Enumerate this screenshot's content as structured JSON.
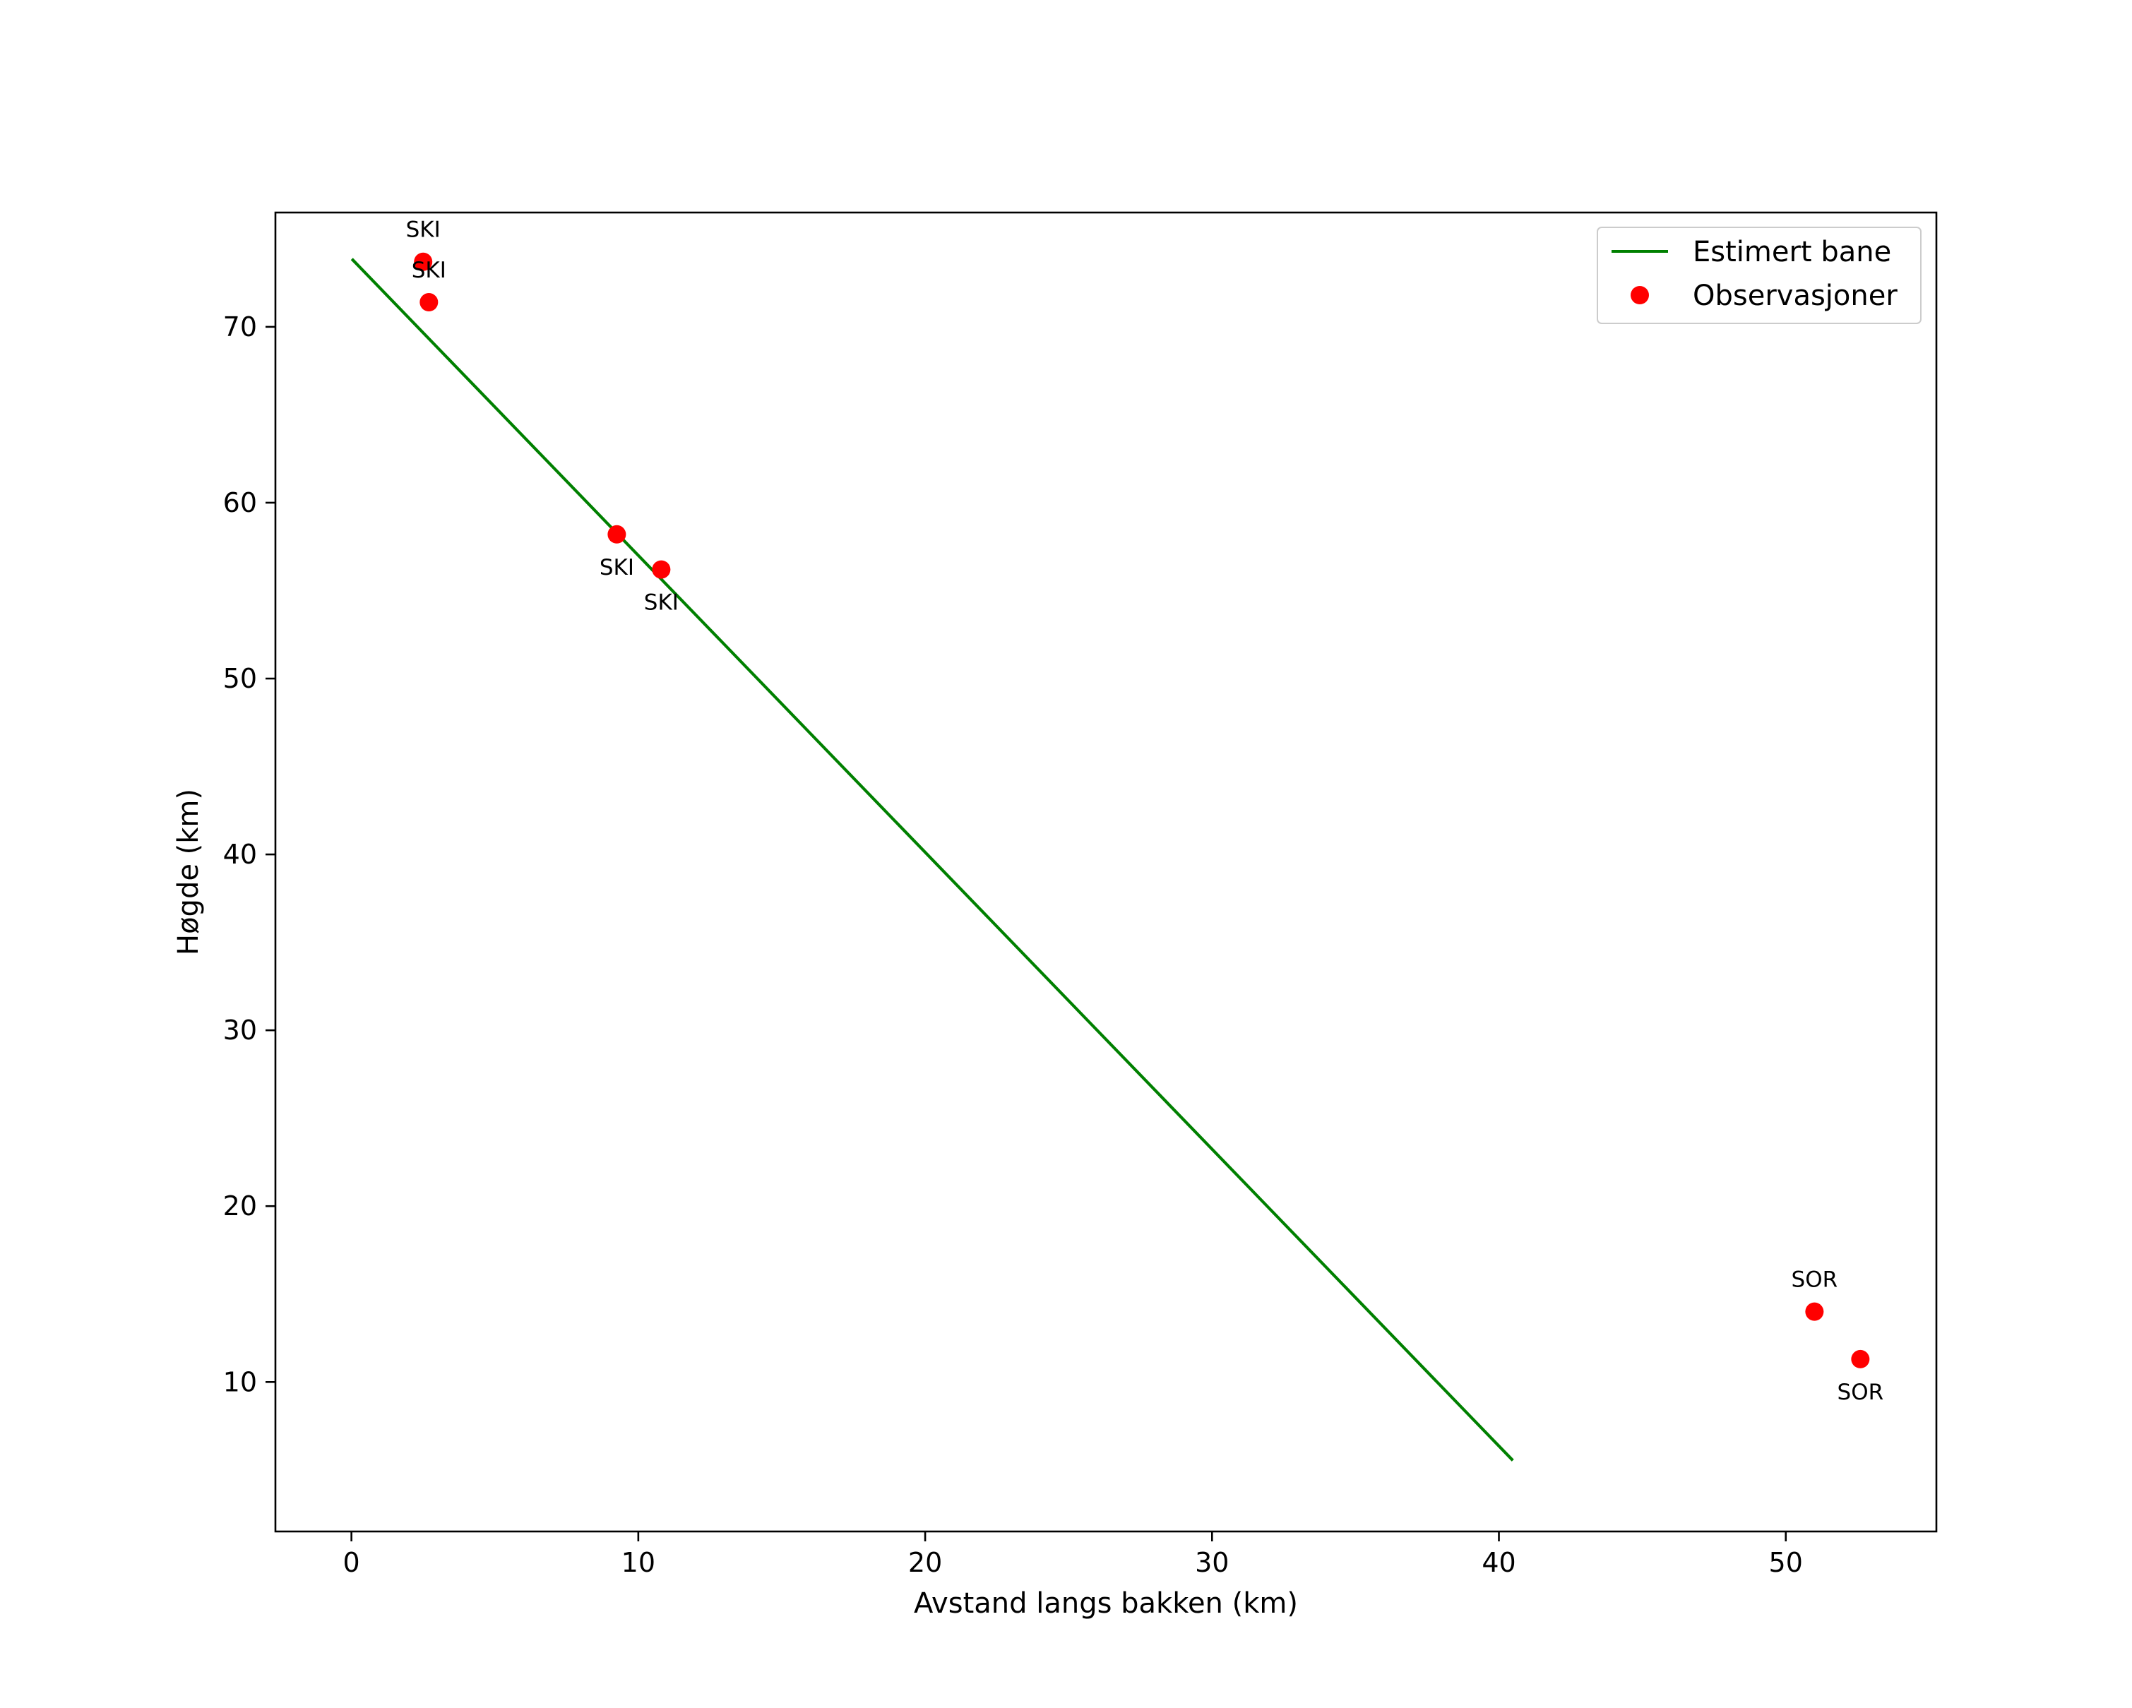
{
  "chart_data": {
    "type": "line+scatter",
    "title": "",
    "xlabel": "Avstand langs bakken (km)",
    "ylabel": "Høgde (km)",
    "xlim": [
      -2.65,
      55.25
    ],
    "ylim": [
      1.5,
      76.5
    ],
    "xticks": [
      0,
      10,
      20,
      30,
      40,
      50
    ],
    "yticks": [
      10,
      20,
      30,
      40,
      50,
      60,
      70
    ],
    "grid": false,
    "legend_position": "upper right",
    "colors": {
      "line": "#008000",
      "points": "#ff0000",
      "axes": "#000000"
    },
    "series": [
      {
        "name": "Estimert bane",
        "kind": "line",
        "x": [
          0.05,
          40.45
        ],
        "y": [
          73.8,
          5.6
        ]
      },
      {
        "name": "Observasjoner",
        "kind": "scatter",
        "points": [
          {
            "x": 2.5,
            "y": 73.7,
            "label": "SKI",
            "label_pos": "above"
          },
          {
            "x": 2.7,
            "y": 71.4,
            "label": "SKI",
            "label_pos": "above"
          },
          {
            "x": 9.25,
            "y": 58.2,
            "label": "SKI",
            "label_pos": "below"
          },
          {
            "x": 10.8,
            "y": 56.2,
            "label": "SKI",
            "label_pos": "below"
          },
          {
            "x": 51.0,
            "y": 14.0,
            "label": "SOR",
            "label_pos": "above"
          },
          {
            "x": 52.6,
            "y": 11.3,
            "label": "SOR",
            "label_pos": "below"
          }
        ]
      }
    ]
  }
}
